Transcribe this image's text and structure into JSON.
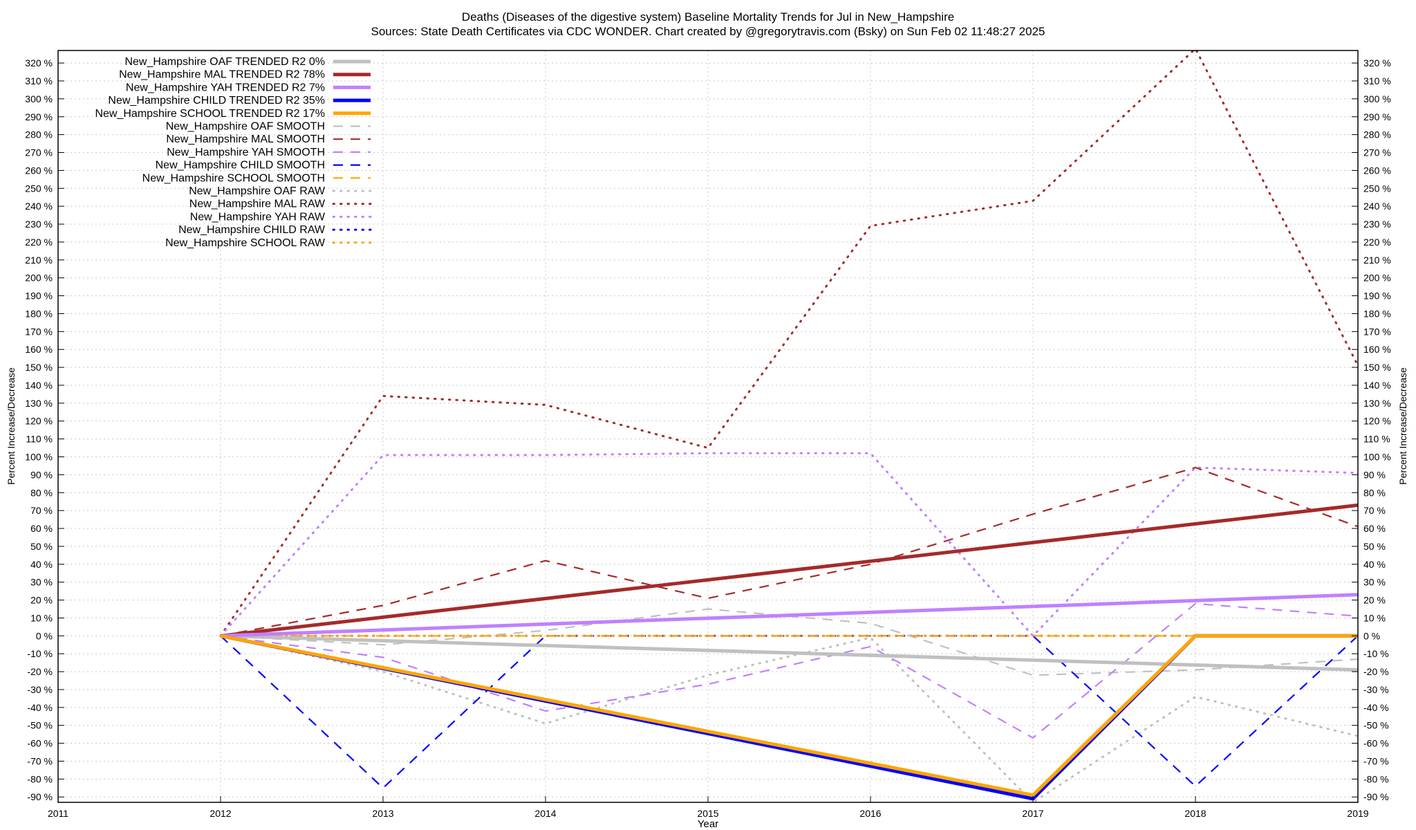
{
  "chart_data": {
    "type": "line",
    "title_line1": "Deaths (Diseases of the digestive system)  Baseline Mortality Trends for Jul in New_Hampshire",
    "title_line2": "Sources: State Death Certificates via CDC WONDER.              Chart created by @gregorytravis.com (Bsky) on Sun Feb 02 11:48:27 2025",
    "xlabel": "Year",
    "ylabel_left": "Percent Increase/Decrease",
    "ylabel_right": "Percent Increase/Decrease",
    "xlim": [
      2011,
      2019
    ],
    "ylim": [
      -93,
      327
    ],
    "x_ticks": [
      2011,
      2012,
      2013,
      2014,
      2015,
      2016,
      2017,
      2018,
      2019
    ],
    "y_ticks": [
      -90,
      -80,
      -70,
      -60,
      -50,
      -40,
      -30,
      -20,
      -10,
      0,
      10,
      20,
      30,
      40,
      50,
      60,
      70,
      80,
      90,
      100,
      110,
      120,
      130,
      140,
      150,
      160,
      170,
      180,
      190,
      200,
      210,
      220,
      230,
      240,
      250,
      260,
      270,
      280,
      290,
      300,
      310,
      320
    ],
    "y_tick_suffix": " %",
    "grid": true,
    "legend_position": "top-left",
    "series": [
      {
        "name": "New_Hampshire OAF TRENDED R2  0%",
        "style": "trend",
        "color": "#c0c0c0",
        "x": [
          2012,
          2019
        ],
        "y": [
          0,
          -19
        ]
      },
      {
        "name": "New_Hampshire MAL TRENDED R2  78%",
        "style": "trend",
        "color": "#a52a2a",
        "x": [
          2012,
          2019
        ],
        "y": [
          0,
          73
        ]
      },
      {
        "name": "New_Hampshire YAH TRENDED R2  7%",
        "style": "trend",
        "color": "#c080ff",
        "x": [
          2012,
          2019
        ],
        "y": [
          0,
          23
        ]
      },
      {
        "name": "New_Hampshire CHILD TRENDED R2  35%",
        "style": "trend",
        "color": "#0000ff",
        "x": [
          2012,
          2017,
          2018,
          2019
        ],
        "y": [
          0,
          -91,
          0,
          0
        ]
      },
      {
        "name": "New_Hampshire SCHOOL TRENDED R2  17%",
        "style": "trend",
        "color": "#ffa500",
        "x": [
          2012,
          2017,
          2018,
          2019
        ],
        "y": [
          0,
          -89,
          0,
          0
        ]
      },
      {
        "name": "New_Hampshire OAF SMOOTH",
        "style": "smooth",
        "color": "#c0c0c0",
        "x": [
          2012,
          2013,
          2014,
          2015,
          2016,
          2017,
          2018,
          2019
        ],
        "y": [
          0,
          -5,
          3,
          15,
          7,
          -22,
          -19,
          -13
        ]
      },
      {
        "name": "New_Hampshire MAL SMOOTH",
        "style": "smooth",
        "color": "#a52a2a",
        "x": [
          2012,
          2013,
          2014,
          2015,
          2016,
          2017,
          2018,
          2019
        ],
        "y": [
          0,
          17,
          42,
          21,
          40,
          68,
          94,
          61
        ]
      },
      {
        "name": "New_Hampshire YAH SMOOTH",
        "style": "smooth",
        "color": "#c080ff",
        "x": [
          2012,
          2013,
          2014,
          2015,
          2016,
          2017,
          2018,
          2019
        ],
        "y": [
          0,
          -12,
          -42,
          -27,
          -6,
          -57,
          18,
          11
        ]
      },
      {
        "name": "New_Hampshire CHILD SMOOTH",
        "style": "smooth",
        "color": "#0000ff",
        "x": [
          2012,
          2013,
          2014,
          2015,
          2016,
          2017,
          2018,
          2019
        ],
        "y": [
          0,
          -85,
          0,
          0,
          0,
          0,
          -84,
          0
        ]
      },
      {
        "name": "New_Hampshire SCHOOL SMOOTH",
        "style": "smooth",
        "color": "#ffa500",
        "x": [
          2012,
          2013,
          2014,
          2015,
          2016,
          2017,
          2018
        ],
        "y": [
          0,
          0,
          0,
          0,
          0,
          0,
          0
        ]
      },
      {
        "name": "New_Hampshire OAF RAW",
        "style": "raw",
        "color": "#c0c0c0",
        "x": [
          2012,
          2013,
          2014,
          2015,
          2016,
          2017,
          2018,
          2019
        ],
        "y": [
          0,
          -20,
          -49,
          -22,
          -1,
          -93,
          -34,
          -56
        ]
      },
      {
        "name": "New_Hampshire MAL RAW",
        "style": "raw",
        "color": "#a52a2a",
        "x": [
          2012,
          2013,
          2014,
          2015,
          2016,
          2017,
          2018,
          2019
        ],
        "y": [
          0,
          134,
          129,
          105,
          229,
          243,
          328,
          151
        ]
      },
      {
        "name": "New_Hampshire YAH RAW",
        "style": "raw",
        "color": "#c080ff",
        "x": [
          2012,
          2013,
          2014,
          2015,
          2016,
          2017,
          2018,
          2019
        ],
        "y": [
          0,
          101,
          101,
          102,
          102,
          0,
          94,
          91
        ]
      },
      {
        "name": "New_Hampshire CHILD RAW",
        "style": "raw",
        "color": "#0000ff",
        "x": [
          2012,
          2013,
          2014,
          2015,
          2016,
          2017,
          2018
        ],
        "y": [
          0,
          0,
          0,
          0,
          0,
          0,
          0
        ]
      },
      {
        "name": "New_Hampshire SCHOOL RAW",
        "style": "raw",
        "color": "#ffa500",
        "x": [
          2012,
          2013,
          2014,
          2015,
          2016,
          2017,
          2018
        ],
        "y": [
          0,
          0,
          0,
          0,
          0,
          0,
          0
        ]
      }
    ]
  }
}
